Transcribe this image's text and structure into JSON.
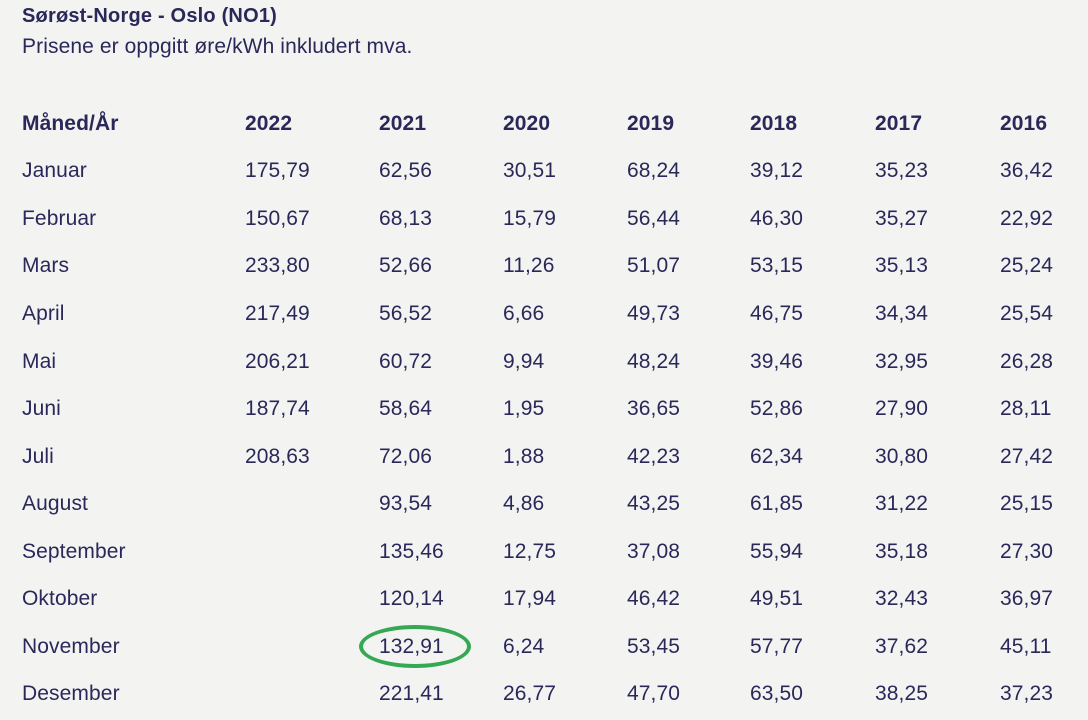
{
  "page": {
    "title": "Sørøst-Norge - Oslo (NO1)",
    "subtitle": "Prisene er oppgitt øre/kWh inkludert mva."
  },
  "colors": {
    "text": "#2a2859",
    "background": "#f3f3f2",
    "highlight_ellipse": "#34a853"
  },
  "annotation": {
    "type": "ellipse",
    "highlighted_month": "November",
    "highlighted_year": "2021",
    "highlighted_value": "132,91"
  },
  "chart_data": {
    "type": "table",
    "title": "Sørøst-Norge - Oslo (NO1)",
    "subtitle": "Prisene er oppgitt øre/kWh inkludert mva.",
    "columns": [
      "Måned/År",
      "2022",
      "2021",
      "2020",
      "2019",
      "2018",
      "2017",
      "2016"
    ],
    "rows": [
      {
        "month": "Januar",
        "values": [
          "175,79",
          "62,56",
          "30,51",
          "68,24",
          "39,12",
          "35,23",
          "36,42"
        ]
      },
      {
        "month": "Februar",
        "values": [
          "150,67",
          "68,13",
          "15,79",
          "56,44",
          "46,30",
          "35,27",
          "22,92"
        ]
      },
      {
        "month": "Mars",
        "values": [
          "233,80",
          "52,66",
          "11,26",
          "51,07",
          "53,15",
          "35,13",
          "25,24"
        ]
      },
      {
        "month": "April",
        "values": [
          "217,49",
          "56,52",
          "6,66",
          "49,73",
          "46,75",
          "34,34",
          "25,54"
        ]
      },
      {
        "month": "Mai",
        "values": [
          "206,21",
          "60,72",
          "9,94",
          "48,24",
          "39,46",
          "32,95",
          "26,28"
        ]
      },
      {
        "month": "Juni",
        "values": [
          "187,74",
          "58,64",
          "1,95",
          "36,65",
          "52,86",
          "27,90",
          "28,11"
        ]
      },
      {
        "month": "Juli",
        "values": [
          "208,63",
          "72,06",
          "1,88",
          "42,23",
          "62,34",
          "30,80",
          "27,42"
        ]
      },
      {
        "month": "August",
        "values": [
          "",
          "93,54",
          "4,86",
          "43,25",
          "61,85",
          "31,22",
          "25,15"
        ]
      },
      {
        "month": "September",
        "values": [
          "",
          "135,46",
          "12,75",
          "37,08",
          "55,94",
          "35,18",
          "27,30"
        ]
      },
      {
        "month": "Oktober",
        "values": [
          "",
          "120,14",
          "17,94",
          "46,42",
          "49,51",
          "32,43",
          "36,97"
        ]
      },
      {
        "month": "November",
        "values": [
          "",
          "132,91",
          "6,24",
          "53,45",
          "57,77",
          "37,62",
          "45,11"
        ]
      },
      {
        "month": "Desember",
        "values": [
          "",
          "221,41",
          "26,77",
          "47,70",
          "63,50",
          "38,25",
          "37,23"
        ]
      }
    ]
  }
}
